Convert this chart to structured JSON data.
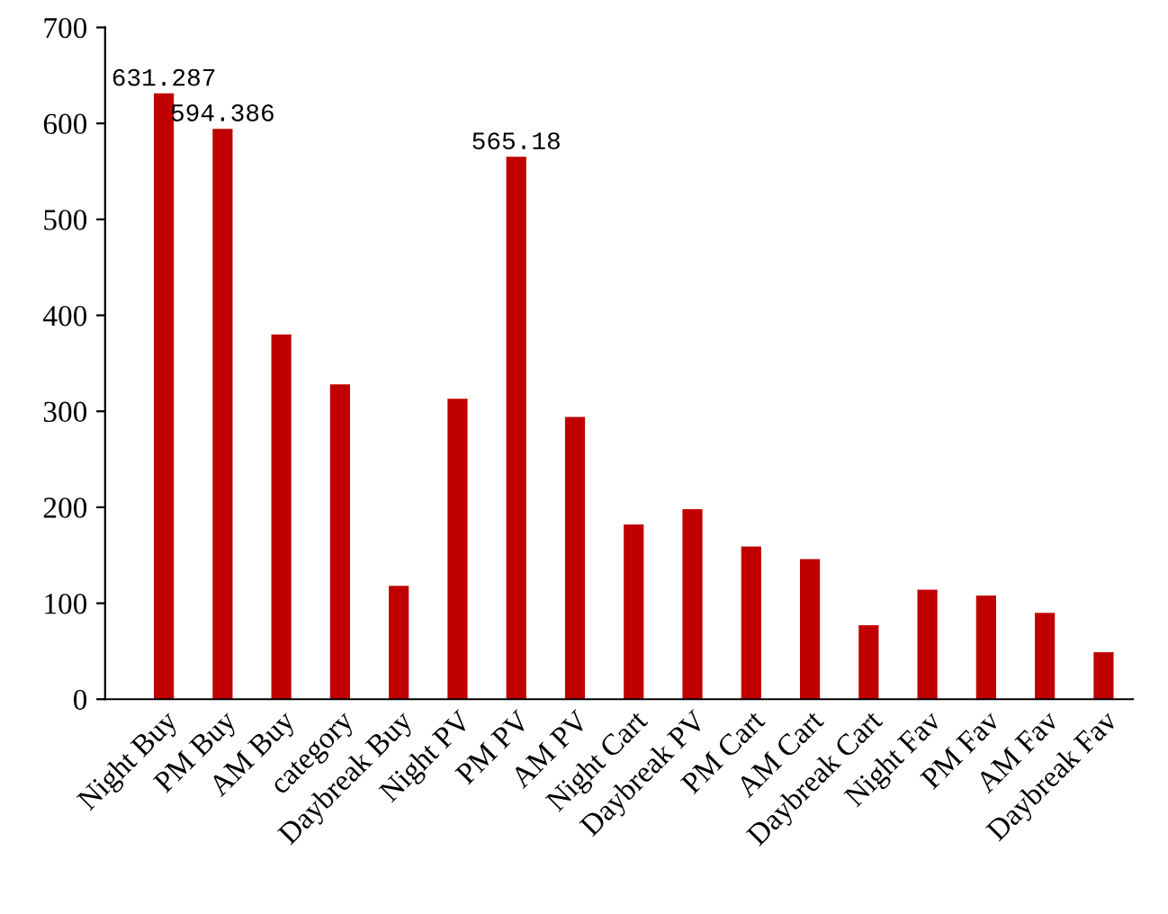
{
  "chart_data": {
    "type": "bar",
    "categories": [
      "Night Buy",
      "PM Buy",
      "AM Buy",
      "category",
      "Daybreak Buy",
      "Night PV",
      "PM PV",
      "AM PV",
      "Night Cart",
      "Daybreak PV",
      "PM Cart",
      "AM Cart",
      "Daybreak Cart",
      "Night Fav",
      "PM Fav",
      "AM Fav",
      "Daybreak Fav"
    ],
    "values": [
      631.287,
      594.386,
      380,
      328,
      118,
      313,
      565.18,
      294,
      182,
      198,
      159,
      146,
      77,
      114,
      108,
      90,
      49
    ],
    "value_labels": [
      "631.287",
      "594.386",
      null,
      null,
      null,
      null,
      "565.18",
      null,
      null,
      null,
      null,
      null,
      null,
      null,
      null,
      null,
      null
    ],
    "color": "#c00000",
    "ylim": [
      0,
      700
    ],
    "yticks": [
      0,
      100,
      200,
      300,
      400,
      500,
      600,
      700
    ],
    "grid": false
  }
}
